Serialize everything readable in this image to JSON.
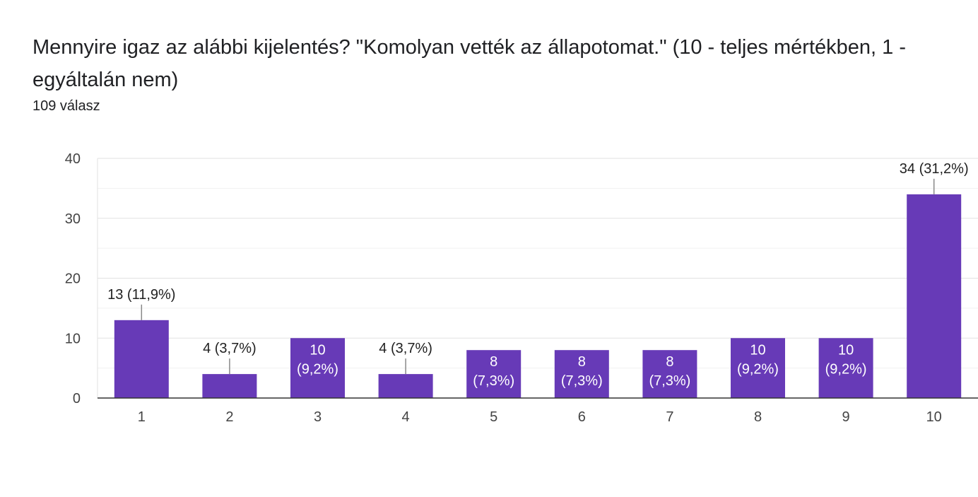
{
  "question": {
    "title": "Mennyire igaz az alábbi kijelentés? \"Komolyan vették az állapotomat.\"   (10 - teljes mértékben, 1 - egyáltalán nem)",
    "responses": "109 válasz"
  },
  "colors": {
    "bar": "#673ab7",
    "grid": "#e6e6e6",
    "axis": "#333333",
    "label_outside": "#212121",
    "label_inside": "#ffffff"
  },
  "chart_data": {
    "type": "bar",
    "categories": [
      "1",
      "2",
      "3",
      "4",
      "5",
      "6",
      "7",
      "8",
      "9",
      "10"
    ],
    "values": [
      13,
      4,
      10,
      4,
      8,
      8,
      8,
      10,
      10,
      34
    ],
    "data_labels": [
      [
        "13 (11,9%)"
      ],
      [
        "4 (3,7%)"
      ],
      [
        "10",
        "(9,2%)"
      ],
      [
        "4 (3,7%)"
      ],
      [
        "8",
        "(7,3%)"
      ],
      [
        "8",
        "(7,3%)"
      ],
      [
        "8",
        "(7,3%)"
      ],
      [
        "10",
        "(9,2%)"
      ],
      [
        "10",
        "(9,2%)"
      ],
      [
        "34 (31,2%)"
      ]
    ],
    "label_inside": [
      false,
      false,
      true,
      false,
      true,
      true,
      true,
      true,
      true,
      false
    ],
    "ylim": [
      0,
      40
    ],
    "yticks": [
      "0",
      "10",
      "20",
      "30",
      "40"
    ],
    "grid": true,
    "legend": "none"
  }
}
